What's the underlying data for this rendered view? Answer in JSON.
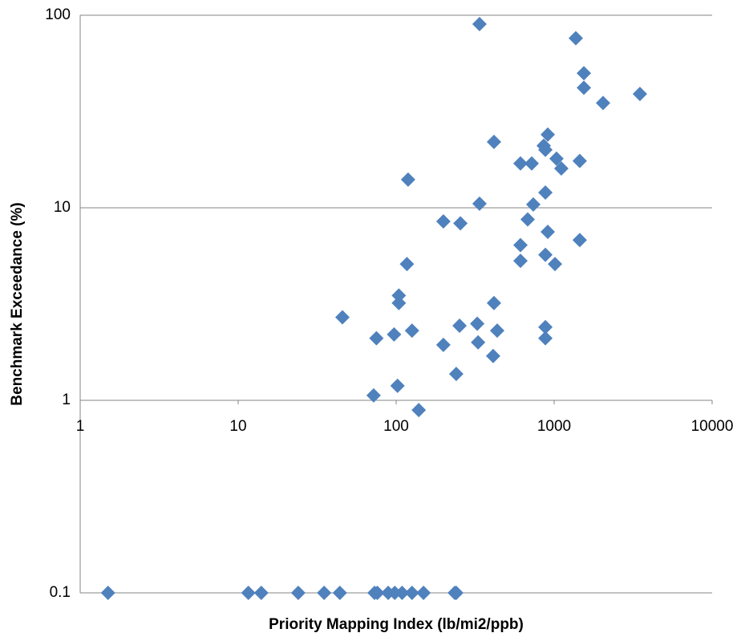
{
  "chart_data": {
    "type": "scatter",
    "x_label": "Priority Mapping Index (lb/mi2/ppb)",
    "y_label": "Benchmark Exceedance (%)",
    "x": [
      337,
      1371,
      1542,
      1542,
      3490,
      2040,
      911,
      416,
      859,
      880,
      1035,
      1452,
      612,
      721,
      1110,
      119,
      880,
      337,
      738,
      680,
      199,
      255,
      911,
      1452,
      612,
      880,
      612,
      1012,
      117,
      104,
      104,
      416,
      45.7,
      252,
      326,
      880,
      436,
      126,
      97,
      75,
      880,
      330,
      199,
      411,
      240,
      102,
      72,
      139,
      1.5,
      11.6,
      14,
      24,
      35,
      44,
      73,
      76,
      89,
      98,
      109,
      126,
      149,
      235,
      240
    ],
    "values": [
      90,
      76,
      50,
      42,
      39,
      35,
      24,
      22,
      21,
      20,
      18,
      17.5,
      17,
      17,
      16,
      14,
      12,
      10.5,
      10.4,
      8.7,
      8.5,
      8.3,
      7.5,
      6.8,
      6.4,
      5.7,
      5.3,
      5.1,
      5.1,
      3.5,
      3.2,
      3.2,
      2.7,
      2.44,
      2.5,
      2.4,
      2.3,
      2.3,
      2.2,
      2.1,
      2.1,
      2.0,
      1.94,
      1.7,
      1.37,
      1.19,
      1.06,
      0.89,
      0.1,
      0.1,
      0.1,
      0.1,
      0.1,
      0.1,
      0.1,
      0.1,
      0.1,
      0.1,
      0.1,
      0.1,
      0.1,
      0.1,
      0.1
    ],
    "color": "#4f81bd",
    "x_log": true,
    "y_log": true,
    "xlim": [
      1,
      10000
    ],
    "xticks": [
      1,
      10,
      100,
      1000,
      10000
    ],
    "ylim": [
      0.1,
      100
    ],
    "yticks": [
      0.1,
      1,
      10,
      100
    ],
    "x_axis_crosses_y": 1,
    "grid": true
  }
}
